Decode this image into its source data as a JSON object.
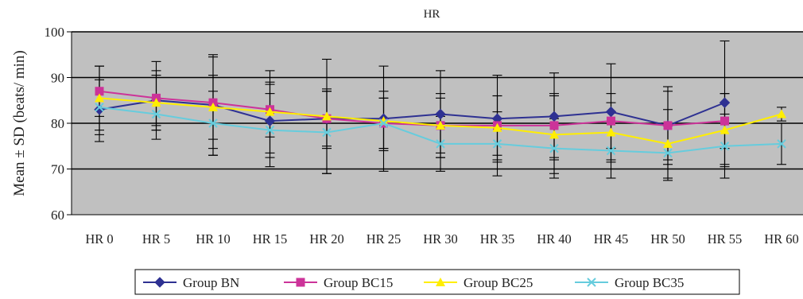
{
  "chart_data": {
    "type": "line",
    "title": "HR",
    "xlabel": "",
    "ylabel": "Mean ± SD (beats/ min)",
    "categories": [
      "HR 0",
      "HR 5",
      "HR 10",
      "HR 15",
      "HR 20",
      "HR 25",
      "HR 30",
      "HR 35",
      "HR 40",
      "HR 45",
      "HR 50",
      "HR 55",
      "HR 60"
    ],
    "ylim": [
      60,
      100
    ],
    "yticks": [
      60,
      70,
      80,
      90,
      100
    ],
    "grid": true,
    "legend_position": "bottom",
    "series": [
      {
        "name": "Group BN",
        "color": "#2E3192",
        "marker": "diamond",
        "values": [
          83,
          85,
          84,
          80.5,
          81,
          81,
          82,
          81,
          81.5,
          82.5,
          79.5,
          84.5,
          null
        ],
        "sd": [
          7,
          8.5,
          11,
          8,
          6,
          11.5,
          9.5,
          9.5,
          9.5,
          10.5,
          8.5,
          13.5,
          null
        ]
      },
      {
        "name": "Group BC15",
        "color": "#CC3399",
        "marker": "square",
        "values": [
          87,
          85.5,
          84.5,
          83,
          81,
          80,
          79.5,
          79.5,
          79.5,
          80.5,
          79.5,
          80.5,
          null
        ],
        "sd": [
          5.5,
          6,
          10,
          6,
          6.5,
          5.5,
          6,
          6.5,
          7,
          6,
          7.5,
          6,
          null
        ]
      },
      {
        "name": "Group BC25",
        "color": "#FFEE00",
        "marker": "triangle",
        "values": [
          85.5,
          84.5,
          83.5,
          82.5,
          81.5,
          80.5,
          79.5,
          79,
          77.5,
          78,
          75.5,
          78.5,
          82
        ],
        "sd": [
          7,
          6,
          7,
          9,
          12.5,
          6.5,
          7,
          7,
          8.5,
          6.5,
          7.5,
          8,
          1.5
        ]
      },
      {
        "name": "Group BC35",
        "color": "#66CCDD",
        "marker": "x",
        "values": [
          83.5,
          82,
          80,
          78.5,
          78,
          80,
          75.5,
          75.5,
          74.5,
          74,
          73.5,
          75,
          75.5
        ],
        "sd": [
          6,
          3.5,
          7,
          8,
          9,
          5.5,
          6,
          7,
          6.5,
          6,
          6,
          7,
          4.5
        ]
      }
    ]
  }
}
